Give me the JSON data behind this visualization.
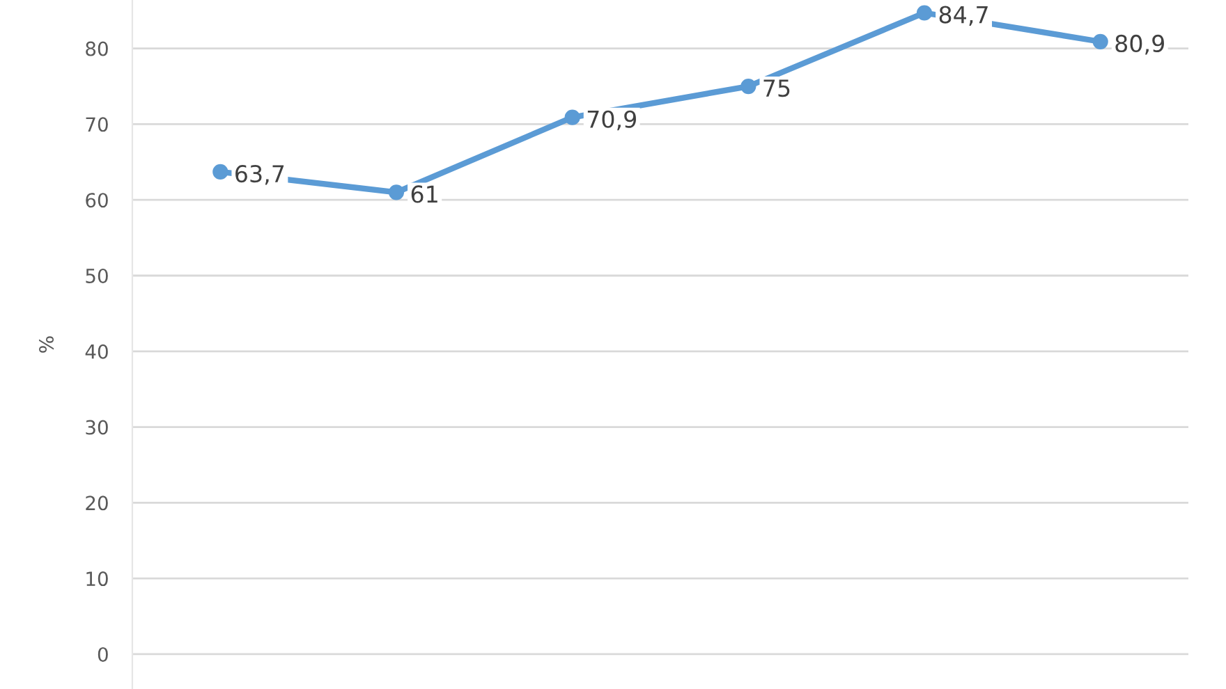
{
  "chart_data": {
    "type": "line",
    "ylabel": "%",
    "categories": [
      null,
      null,
      null,
      null,
      null,
      null
    ],
    "series": [
      {
        "color": "#5b9bd5",
        "values": [
          63.7,
          61,
          70.9,
          75,
          84.7,
          80.9
        ],
        "value_labels": [
          "63,7",
          "61",
          "70,9",
          "75",
          "84,7",
          "80,9"
        ]
      }
    ],
    "ylim": [
      -4.6,
      86.4
    ],
    "yticks": [
      0,
      10,
      20,
      30,
      40,
      50,
      60,
      70,
      80
    ],
    "grid": "y",
    "marker": "circle",
    "line_style": "solid",
    "legend": false
  }
}
